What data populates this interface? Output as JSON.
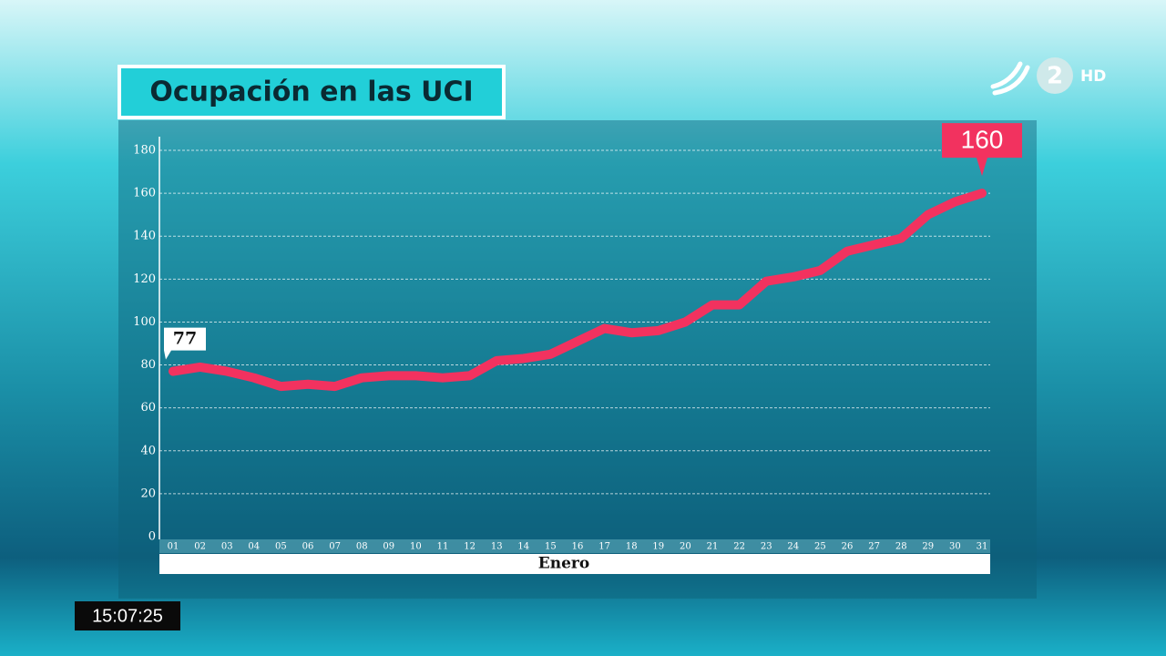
{
  "chart_data": {
    "type": "line",
    "title": "Ocupación en las UCI",
    "x_label": "Enero",
    "categories": [
      "01",
      "02",
      "03",
      "04",
      "05",
      "06",
      "07",
      "08",
      "09",
      "10",
      "11",
      "12",
      "13",
      "14",
      "15",
      "16",
      "17",
      "18",
      "19",
      "20",
      "21",
      "22",
      "23",
      "24",
      "25",
      "26",
      "27",
      "28",
      "29",
      "30",
      "31"
    ],
    "values": [
      77,
      79,
      77,
      74,
      70,
      71,
      70,
      74,
      75,
      75,
      74,
      75,
      82,
      83,
      85,
      91,
      97,
      95,
      96,
      100,
      108,
      108,
      119,
      121,
      124,
      133,
      136,
      139,
      150,
      156,
      160
    ],
    "color": "#f2325f",
    "ylim": [
      0,
      180
    ],
    "yticks": [
      0,
      20,
      40,
      60,
      80,
      100,
      120,
      140,
      160,
      180
    ],
    "grid": true
  },
  "channel": {
    "logo": "2",
    "quality": "HD"
  },
  "clock": "15:07:25"
}
